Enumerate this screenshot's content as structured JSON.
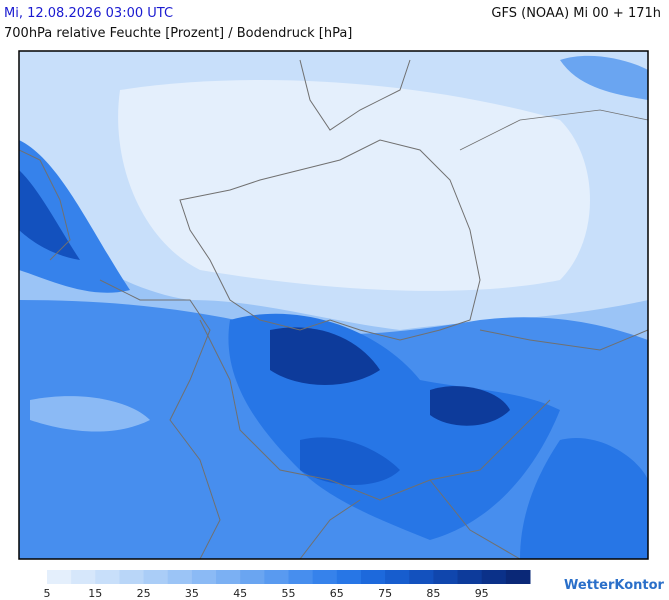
{
  "header": {
    "valid_time": "Mi, 12.08.2026 03:00 UTC",
    "model_run": "GFS (NOAA) Mi 00 + 171h",
    "parameter": "700hPa relative Feuchte [Prozent] / Bodendruck [hPa]"
  },
  "colorbar": {
    "ticks": [
      5,
      15,
      25,
      35,
      45,
      55,
      65,
      75,
      85,
      95
    ],
    "colors": [
      "#e4effc",
      "#d6e7fb",
      "#c8dffa",
      "#b9d6f8",
      "#aacdf7",
      "#9bc4f6",
      "#8bbaf5",
      "#7bb0f3",
      "#6aa5f1",
      "#599af0",
      "#478eee",
      "#3682eb",
      "#2776e6",
      "#1d69dc",
      "#175dce",
      "#1351be",
      "#1046ad",
      "#0d3b9b",
      "#0b3189",
      "#0a2877"
    ]
  },
  "logo": "WetterKontor"
}
